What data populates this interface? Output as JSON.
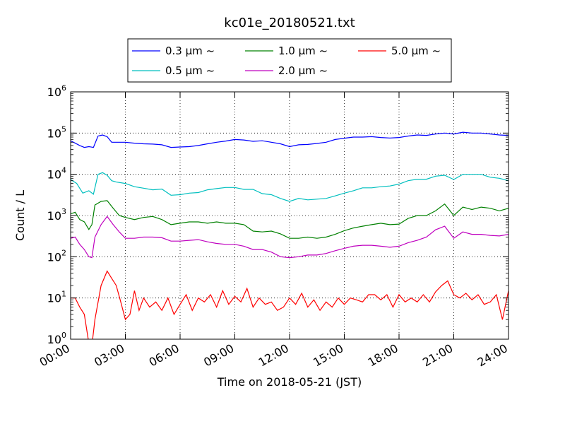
{
  "chart_data": {
    "type": "line",
    "title": "kc01e_20180521.txt",
    "xlabel": "Time on 2018-05-21 (JST)",
    "ylabel": "Count / L",
    "xlim": [
      "00:00",
      "24:00"
    ],
    "ylim": [
      1,
      1000000
    ],
    "yscale": "log",
    "grid": true,
    "legend_position": "top-center",
    "x_ticks": [
      "00:00",
      "03:00",
      "06:00",
      "09:00",
      "12:00",
      "15:00",
      "18:00",
      "21:00",
      "24:00"
    ],
    "y_ticks": [
      {
        "base": "10",
        "exp": "0",
        "value": 1
      },
      {
        "base": "10",
        "exp": "1",
        "value": 10
      },
      {
        "base": "10",
        "exp": "2",
        "value": 100
      },
      {
        "base": "10",
        "exp": "3",
        "value": 1000
      },
      {
        "base": "10",
        "exp": "4",
        "value": 10000
      },
      {
        "base": "10",
        "exp": "5",
        "value": 100000
      },
      {
        "base": "10",
        "exp": "6",
        "value": 1000000
      }
    ],
    "series": [
      {
        "name": "0.3 μm ~",
        "color": "#0000ff",
        "points": [
          [
            "00:00",
            65000
          ],
          [
            "00:30",
            50000
          ],
          [
            "00:45",
            45000
          ],
          [
            "01:00",
            47000
          ],
          [
            "01:15",
            45000
          ],
          [
            "01:30",
            85000
          ],
          [
            "01:45",
            90000
          ],
          [
            "02:00",
            82000
          ],
          [
            "02:15",
            60000
          ],
          [
            "03:00",
            60000
          ],
          [
            "03:30",
            57000
          ],
          [
            "04:00",
            55000
          ],
          [
            "04:30",
            54000
          ],
          [
            "05:00",
            52000
          ],
          [
            "05:30",
            45000
          ],
          [
            "06:00",
            46000
          ],
          [
            "06:30",
            47000
          ],
          [
            "07:00",
            50000
          ],
          [
            "07:30",
            55000
          ],
          [
            "08:00",
            60000
          ],
          [
            "08:30",
            64000
          ],
          [
            "09:00",
            70000
          ],
          [
            "09:30",
            68000
          ],
          [
            "10:00",
            63000
          ],
          [
            "10:30",
            65000
          ],
          [
            "11:00",
            60000
          ],
          [
            "11:30",
            55000
          ],
          [
            "12:00",
            47000
          ],
          [
            "12:30",
            52000
          ],
          [
            "13:00",
            53000
          ],
          [
            "13:30",
            56000
          ],
          [
            "14:00",
            60000
          ],
          [
            "14:30",
            70000
          ],
          [
            "15:00",
            75000
          ],
          [
            "15:30",
            80000
          ],
          [
            "16:00",
            80000
          ],
          [
            "16:30",
            82000
          ],
          [
            "17:00",
            78000
          ],
          [
            "17:30",
            76000
          ],
          [
            "18:00",
            78000
          ],
          [
            "18:30",
            85000
          ],
          [
            "19:00",
            90000
          ],
          [
            "19:30",
            88000
          ],
          [
            "20:00",
            95000
          ],
          [
            "20:30",
            100000
          ],
          [
            "21:00",
            95000
          ],
          [
            "21:30",
            105000
          ],
          [
            "22:00",
            100000
          ],
          [
            "22:30",
            100000
          ],
          [
            "23:00",
            95000
          ],
          [
            "23:30",
            90000
          ],
          [
            "24:00",
            88000
          ]
        ]
      },
      {
        "name": "0.5 μm ~",
        "color": "#00bfbf",
        "points": [
          [
            "00:00",
            7500
          ],
          [
            "00:20",
            6000
          ],
          [
            "00:40",
            3500
          ],
          [
            "01:00",
            4000
          ],
          [
            "01:15",
            3300
          ],
          [
            "01:30",
            10000
          ],
          [
            "01:45",
            11000
          ],
          [
            "02:00",
            9500
          ],
          [
            "02:15",
            7000
          ],
          [
            "02:30",
            6500
          ],
          [
            "03:00",
            6000
          ],
          [
            "03:30",
            5000
          ],
          [
            "04:00",
            4600
          ],
          [
            "04:30",
            4200
          ],
          [
            "05:00",
            4400
          ],
          [
            "05:30",
            3100
          ],
          [
            "06:00",
            3200
          ],
          [
            "06:30",
            3500
          ],
          [
            "07:00",
            3600
          ],
          [
            "07:30",
            4200
          ],
          [
            "08:00",
            4500
          ],
          [
            "08:30",
            4800
          ],
          [
            "09:00",
            4800
          ],
          [
            "09:30",
            4300
          ],
          [
            "10:00",
            4300
          ],
          [
            "10:30",
            3400
          ],
          [
            "11:00",
            3200
          ],
          [
            "11:30",
            2600
          ],
          [
            "12:00",
            2200
          ],
          [
            "12:30",
            2600
          ],
          [
            "13:00",
            2400
          ],
          [
            "13:30",
            2500
          ],
          [
            "14:00",
            2600
          ],
          [
            "14:30",
            3000
          ],
          [
            "15:00",
            3500
          ],
          [
            "15:30",
            4000
          ],
          [
            "16:00",
            4700
          ],
          [
            "16:30",
            4700
          ],
          [
            "17:00",
            5000
          ],
          [
            "17:30",
            5200
          ],
          [
            "18:00",
            5800
          ],
          [
            "18:30",
            7000
          ],
          [
            "19:00",
            7600
          ],
          [
            "19:30",
            7600
          ],
          [
            "20:00",
            9000
          ],
          [
            "20:30",
            9500
          ],
          [
            "21:00",
            7500
          ],
          [
            "21:30",
            10000
          ],
          [
            "22:00",
            10000
          ],
          [
            "22:30",
            10000
          ],
          [
            "23:00",
            8500
          ],
          [
            "23:30",
            8000
          ],
          [
            "24:00",
            7000
          ]
        ]
      },
      {
        "name": "1.0 μm ~",
        "color": "#008000",
        "points": [
          [
            "00:00",
            1100
          ],
          [
            "00:15",
            1200
          ],
          [
            "00:30",
            800
          ],
          [
            "00:45",
            700
          ],
          [
            "01:00",
            460
          ],
          [
            "01:10",
            600
          ],
          [
            "01:20",
            1800
          ],
          [
            "01:40",
            2200
          ],
          [
            "02:00",
            2300
          ],
          [
            "02:20",
            1500
          ],
          [
            "02:40",
            1000
          ],
          [
            "03:00",
            900
          ],
          [
            "03:30",
            800
          ],
          [
            "04:00",
            900
          ],
          [
            "04:30",
            950
          ],
          [
            "05:00",
            800
          ],
          [
            "05:30",
            600
          ],
          [
            "06:00",
            650
          ],
          [
            "06:30",
            700
          ],
          [
            "07:00",
            700
          ],
          [
            "07:30",
            650
          ],
          [
            "08:00",
            700
          ],
          [
            "08:30",
            650
          ],
          [
            "09:00",
            650
          ],
          [
            "09:30",
            600
          ],
          [
            "10:00",
            420
          ],
          [
            "10:30",
            400
          ],
          [
            "11:00",
            420
          ],
          [
            "11:30",
            360
          ],
          [
            "12:00",
            280
          ],
          [
            "12:30",
            280
          ],
          [
            "13:00",
            300
          ],
          [
            "13:30",
            280
          ],
          [
            "14:00",
            300
          ],
          [
            "14:30",
            350
          ],
          [
            "15:00",
            430
          ],
          [
            "15:30",
            500
          ],
          [
            "16:00",
            550
          ],
          [
            "16:30",
            600
          ],
          [
            "17:00",
            650
          ],
          [
            "17:30",
            600
          ],
          [
            "18:00",
            620
          ],
          [
            "18:30",
            850
          ],
          [
            "19:00",
            1000
          ],
          [
            "19:30",
            1000
          ],
          [
            "20:00",
            1300
          ],
          [
            "20:30",
            1900
          ],
          [
            "21:00",
            1000
          ],
          [
            "21:30",
            1600
          ],
          [
            "22:00",
            1400
          ],
          [
            "22:30",
            1600
          ],
          [
            "23:00",
            1500
          ],
          [
            "23:30",
            1300
          ],
          [
            "24:00",
            1500
          ]
        ]
      },
      {
        "name": "2.0 μm ~",
        "color": "#bf00bf",
        "points": [
          [
            "00:00",
            280
          ],
          [
            "00:15",
            300
          ],
          [
            "00:30",
            200
          ],
          [
            "00:45",
            150
          ],
          [
            "01:00",
            100
          ],
          [
            "01:10",
            95
          ],
          [
            "01:20",
            300
          ],
          [
            "01:40",
            600
          ],
          [
            "02:00",
            950
          ],
          [
            "02:20",
            600
          ],
          [
            "02:40",
            400
          ],
          [
            "03:00",
            280
          ],
          [
            "03:30",
            280
          ],
          [
            "04:00",
            300
          ],
          [
            "04:30",
            300
          ],
          [
            "05:00",
            290
          ],
          [
            "05:30",
            240
          ],
          [
            "06:00",
            240
          ],
          [
            "06:30",
            250
          ],
          [
            "07:00",
            260
          ],
          [
            "07:30",
            230
          ],
          [
            "08:00",
            210
          ],
          [
            "08:30",
            200
          ],
          [
            "09:00",
            200
          ],
          [
            "09:30",
            180
          ],
          [
            "10:00",
            150
          ],
          [
            "10:30",
            150
          ],
          [
            "11:00",
            130
          ],
          [
            "11:30",
            100
          ],
          [
            "12:00",
            95
          ],
          [
            "12:30",
            100
          ],
          [
            "13:00",
            110
          ],
          [
            "13:30",
            110
          ],
          [
            "14:00",
            120
          ],
          [
            "14:30",
            140
          ],
          [
            "15:00",
            160
          ],
          [
            "15:30",
            180
          ],
          [
            "16:00",
            190
          ],
          [
            "16:30",
            190
          ],
          [
            "17:00",
            180
          ],
          [
            "17:30",
            170
          ],
          [
            "18:00",
            180
          ],
          [
            "18:30",
            220
          ],
          [
            "19:00",
            250
          ],
          [
            "19:30",
            300
          ],
          [
            "20:00",
            450
          ],
          [
            "20:30",
            550
          ],
          [
            "21:00",
            280
          ],
          [
            "21:30",
            400
          ],
          [
            "22:00",
            350
          ],
          [
            "22:30",
            350
          ],
          [
            "23:00",
            330
          ],
          [
            "23:30",
            320
          ],
          [
            "24:00",
            350
          ]
        ]
      },
      {
        "name": "5.0 μm ~",
        "color": "#ff0000",
        "points": [
          [
            "00:00",
            10
          ],
          [
            "00:15",
            10
          ],
          [
            "00:30",
            6
          ],
          [
            "00:45",
            4
          ],
          [
            "01:00",
            0.8
          ],
          [
            "01:10",
            0.7
          ],
          [
            "01:20",
            3
          ],
          [
            "01:40",
            20
          ],
          [
            "02:00",
            45
          ],
          [
            "02:15",
            30
          ],
          [
            "02:30",
            20
          ],
          [
            "02:45",
            8
          ],
          [
            "03:00",
            3
          ],
          [
            "03:15",
            4
          ],
          [
            "03:30",
            15
          ],
          [
            "03:45",
            5
          ],
          [
            "04:00",
            10
          ],
          [
            "04:20",
            6
          ],
          [
            "04:40",
            8
          ],
          [
            "05:00",
            5
          ],
          [
            "05:20",
            10
          ],
          [
            "05:40",
            4
          ],
          [
            "06:00",
            7
          ],
          [
            "06:20",
            12
          ],
          [
            "06:40",
            5
          ],
          [
            "07:00",
            10
          ],
          [
            "07:20",
            8
          ],
          [
            "07:40",
            12
          ],
          [
            "08:00",
            6
          ],
          [
            "08:20",
            15
          ],
          [
            "08:40",
            7
          ],
          [
            "09:00",
            11
          ],
          [
            "09:20",
            8
          ],
          [
            "09:40",
            17
          ],
          [
            "10:00",
            6
          ],
          [
            "10:20",
            10
          ],
          [
            "10:40",
            7
          ],
          [
            "11:00",
            8
          ],
          [
            "11:20",
            5
          ],
          [
            "11:40",
            6
          ],
          [
            "12:00",
            10
          ],
          [
            "12:20",
            7
          ],
          [
            "12:40",
            13
          ],
          [
            "13:00",
            6
          ],
          [
            "13:20",
            9
          ],
          [
            "13:40",
            5
          ],
          [
            "14:00",
            8
          ],
          [
            "14:20",
            6
          ],
          [
            "14:40",
            10
          ],
          [
            "15:00",
            7
          ],
          [
            "15:20",
            10
          ],
          [
            "15:40",
            9
          ],
          [
            "16:00",
            8
          ],
          [
            "16:20",
            12
          ],
          [
            "16:40",
            12
          ],
          [
            "17:00",
            9
          ],
          [
            "17:20",
            12
          ],
          [
            "17:40",
            6
          ],
          [
            "18:00",
            12
          ],
          [
            "18:20",
            8
          ],
          [
            "18:40",
            10
          ],
          [
            "19:00",
            8
          ],
          [
            "19:20",
            12
          ],
          [
            "19:40",
            8
          ],
          [
            "20:00",
            14
          ],
          [
            "20:20",
            20
          ],
          [
            "20:40",
            26
          ],
          [
            "21:00",
            12
          ],
          [
            "21:20",
            10
          ],
          [
            "21:40",
            13
          ],
          [
            "22:00",
            9
          ],
          [
            "22:20",
            12
          ],
          [
            "22:40",
            7
          ],
          [
            "23:00",
            8
          ],
          [
            "23:20",
            12
          ],
          [
            "23:40",
            3
          ],
          [
            "24:00",
            15
          ]
        ]
      }
    ]
  }
}
